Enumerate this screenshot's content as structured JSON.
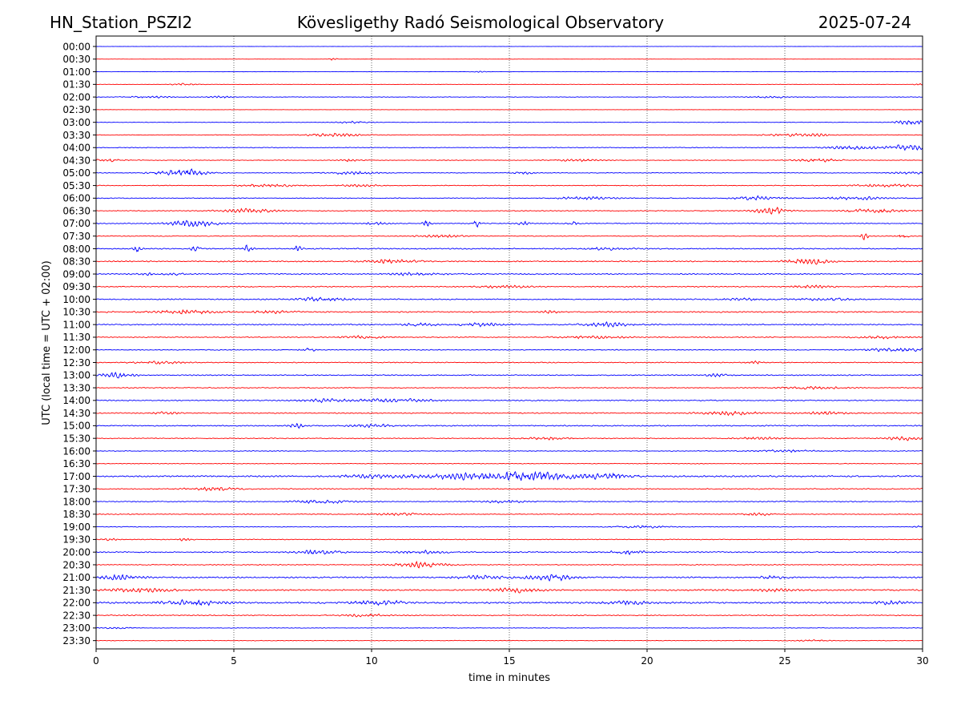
{
  "header": {
    "station": "HN_Station_PSZI2",
    "title": "Kövesligethy Radó Seismological Observatory",
    "date": "2025-07-24"
  },
  "chart_data": {
    "type": "line",
    "description_kind": "seismogram helicorder",
    "xlabel": "time in minutes",
    "ylabel": "UTC (local time = UTC + 02:00)",
    "xlim": [
      0,
      30
    ],
    "xticks": [
      0,
      5,
      10,
      15,
      20,
      25,
      30
    ],
    "grid": "vertical dotted lines at 5, 10, 15, 20, 25",
    "row_labels": [
      "00:00",
      "00:30",
      "01:00",
      "01:30",
      "02:00",
      "02:30",
      "03:00",
      "03:30",
      "04:00",
      "04:30",
      "05:00",
      "05:30",
      "06:00",
      "06:30",
      "07:00",
      "07:30",
      "08:00",
      "08:30",
      "09:00",
      "09:30",
      "10:00",
      "10:30",
      "11:00",
      "11:30",
      "12:00",
      "12:30",
      "13:00",
      "13:30",
      "14:00",
      "14:30",
      "15:00",
      "15:30",
      "16:00",
      "16:30",
      "17:00",
      "17:30",
      "18:00",
      "18:30",
      "19:00",
      "19:30",
      "20:00",
      "20:30",
      "21:00",
      "21:30",
      "22:00",
      "22:30",
      "23:00",
      "23:30"
    ],
    "colors": [
      "#0000ff",
      "#ff0000"
    ],
    "activity": [
      [
        0.2,
        []
      ],
      [
        0.2,
        [
          [
            8.6,
            0.1,
            3
          ]
        ]
      ],
      [
        0.2,
        [
          [
            14,
            0.2,
            1.5
          ]
        ]
      ],
      [
        0.4,
        [
          [
            3.2,
            0.3,
            2
          ],
          [
            30,
            0.2,
            2
          ]
        ]
      ],
      [
        0.6,
        [
          [
            2,
            0.6,
            2
          ],
          [
            4.5,
            0.3,
            2
          ],
          [
            24.5,
            0.5,
            2
          ]
        ]
      ],
      [
        0.3,
        []
      ],
      [
        0.5,
        [
          [
            29.6,
            0.4,
            5
          ],
          [
            9.3,
            0.4,
            2
          ]
        ]
      ],
      [
        0.7,
        [
          [
            8.7,
            0.6,
            4
          ],
          [
            25,
            0.6,
            2.5
          ],
          [
            26.2,
            0.4,
            2.5
          ]
        ]
      ],
      [
        0.8,
        [
          [
            27.5,
            0.7,
            3.5
          ],
          [
            29.5,
            0.5,
            6
          ]
        ]
      ],
      [
        0.7,
        [
          [
            0.5,
            0.4,
            2.5
          ],
          [
            9.2,
            0.3,
            2.5
          ],
          [
            17.5,
            0.6,
            2.5
          ],
          [
            26.2,
            0.6,
            3
          ]
        ]
      ],
      [
        0.7,
        [
          [
            3.1,
            0.6,
            9
          ],
          [
            9.3,
            0.6,
            3
          ],
          [
            15.5,
            0.3,
            2.5
          ],
          [
            29.5,
            0.5,
            2.5
          ]
        ]
      ],
      [
        0.8,
        [
          [
            6.2,
            0.7,
            3
          ],
          [
            9.5,
            0.5,
            2.5
          ],
          [
            28.8,
            0.9,
            2.5
          ]
        ]
      ],
      [
        0.9,
        [
          [
            17.7,
            0.7,
            3
          ],
          [
            24,
            0.6,
            4
          ],
          [
            27.5,
            0.8,
            3
          ]
        ]
      ],
      [
        0.9,
        [
          [
            5.5,
            0.7,
            4.5
          ],
          [
            24.5,
            0.4,
            7
          ],
          [
            28.3,
            0.7,
            4
          ]
        ]
      ],
      [
        1.0,
        [
          [
            3.5,
            0.6,
            7
          ],
          [
            10.2,
            0.3,
            3
          ],
          [
            12,
            0.1,
            6
          ],
          [
            13.8,
            0.1,
            7
          ],
          [
            15.5,
            0.1,
            8
          ],
          [
            17.3,
            0.1,
            5
          ]
        ]
      ],
      [
        0.8,
        [
          [
            12.5,
            0.6,
            3
          ],
          [
            27.9,
            0.1,
            7
          ],
          [
            29.3,
            0.1,
            8
          ]
        ]
      ],
      [
        1.2,
        [
          [
            1.5,
            0.1,
            7
          ],
          [
            3.6,
            0.1,
            8
          ],
          [
            5.5,
            0.1,
            7
          ],
          [
            7.3,
            0.1,
            6
          ],
          [
            18.5,
            0.6,
            2.5
          ]
        ]
      ],
      [
        1.2,
        [
          [
            10.7,
            0.7,
            4
          ],
          [
            25.8,
            0.5,
            7
          ]
        ]
      ],
      [
        1.2,
        [
          [
            1.8,
            0.2,
            3
          ],
          [
            2.8,
            0.2,
            2.5
          ],
          [
            11.5,
            0.7,
            2.5
          ]
        ]
      ],
      [
        1.1,
        [
          [
            14.8,
            0.7,
            2.5
          ],
          [
            26,
            0.5,
            2.5
          ]
        ]
      ],
      [
        1.2,
        [
          [
            8.2,
            0.7,
            4
          ],
          [
            23.5,
            0.5,
            2.5
          ],
          [
            26.5,
            0.7,
            2.5
          ]
        ]
      ],
      [
        1.3,
        [
          [
            3.2,
            0.8,
            3.5
          ],
          [
            6.4,
            0.6,
            2.5
          ],
          [
            16.5,
            0.2,
            3
          ]
        ]
      ],
      [
        1.2,
        [
          [
            11.8,
            0.4,
            3.5
          ],
          [
            14,
            0.7,
            3
          ],
          [
            18.6,
            0.6,
            4.5
          ]
        ]
      ],
      [
        1.0,
        [
          [
            9.7,
            0.6,
            2.5
          ],
          [
            18,
            0.8,
            2.5
          ],
          [
            28.5,
            0.6,
            2.5
          ]
        ]
      ],
      [
        0.9,
        [
          [
            7.7,
            0.2,
            3.5
          ],
          [
            29,
            0.8,
            3.5
          ]
        ]
      ],
      [
        1.0,
        [
          [
            2.2,
            0.6,
            2.5
          ],
          [
            23.9,
            0.2,
            4
          ]
        ]
      ],
      [
        1.1,
        [
          [
            0.8,
            0.4,
            6
          ],
          [
            22.5,
            0.3,
            3
          ]
        ]
      ],
      [
        0.9,
        [
          [
            26,
            0.8,
            2.5
          ]
        ]
      ],
      [
        1.1,
        [
          [
            8.2,
            0.6,
            3
          ],
          [
            10.8,
            1.0,
            3
          ]
        ]
      ],
      [
        1.1,
        [
          [
            2.6,
            0.3,
            3
          ],
          [
            23,
            0.7,
            3.5
          ],
          [
            26.5,
            0.6,
            2.5
          ]
        ]
      ],
      [
        1.2,
        [
          [
            7.3,
            0.2,
            4
          ],
          [
            10,
            0.6,
            2.5
          ]
        ]
      ],
      [
        0.9,
        [
          [
            16.5,
            0.6,
            2.5
          ],
          [
            29.3,
            0.5,
            3.5
          ],
          [
            24,
            0.6,
            2.5
          ]
        ]
      ],
      [
        0.8,
        [
          [
            25,
            0.8,
            2
          ]
        ]
      ],
      [
        0.7,
        []
      ],
      [
        1.6,
        [
          [
            13.5,
            1.6,
            5.5
          ],
          [
            16,
            1.3,
            6.5
          ],
          [
            18.8,
            0.6,
            4.5
          ],
          [
            9.8,
            0.6,
            3
          ]
        ]
      ],
      [
        1.1,
        [
          [
            4.3,
            0.6,
            3.5
          ]
        ]
      ],
      [
        1.0,
        [
          [
            8.2,
            0.7,
            3.5
          ],
          [
            14.8,
            0.5,
            2.5
          ]
        ]
      ],
      [
        0.9,
        [
          [
            11,
            0.6,
            2.5
          ],
          [
            24,
            0.4,
            2.5
          ]
        ]
      ],
      [
        0.7,
        [
          [
            19.8,
            0.6,
            3
          ],
          [
            30,
            0.2,
            3
          ]
        ]
      ],
      [
        0.8,
        [
          [
            0.5,
            0.2,
            2.5
          ],
          [
            3.2,
            0.2,
            2.5
          ]
        ]
      ],
      [
        1.2,
        [
          [
            8,
            0.6,
            4
          ],
          [
            11.8,
            0.6,
            3
          ],
          [
            19.3,
            0.4,
            4.5
          ]
        ]
      ],
      [
        0.9,
        [
          [
            11.8,
            0.6,
            6
          ]
        ]
      ],
      [
        1.4,
        [
          [
            0.9,
            0.5,
            5
          ],
          [
            14,
            0.6,
            3.5
          ],
          [
            16.5,
            0.6,
            5.5
          ],
          [
            24.6,
            0.4,
            3
          ]
        ]
      ],
      [
        1.5,
        [
          [
            1.6,
            0.8,
            3.5
          ],
          [
            15.2,
            0.6,
            4.5
          ],
          [
            24.5,
            0.6,
            2.5
          ]
        ]
      ],
      [
        1.7,
        [
          [
            3.5,
            0.8,
            4.5
          ],
          [
            10.2,
            0.7,
            4
          ],
          [
            19.3,
            0.5,
            3.5
          ],
          [
            28.8,
            0.4,
            3.5
          ]
        ]
      ],
      [
        1.0,
        [
          [
            9.7,
            0.5,
            3
          ]
        ]
      ],
      [
        0.6,
        [
          [
            0.8,
            0.4,
            1.5
          ]
        ]
      ],
      [
        0.6,
        [
          [
            26,
            0.5,
            1.5
          ]
        ]
      ]
    ]
  }
}
